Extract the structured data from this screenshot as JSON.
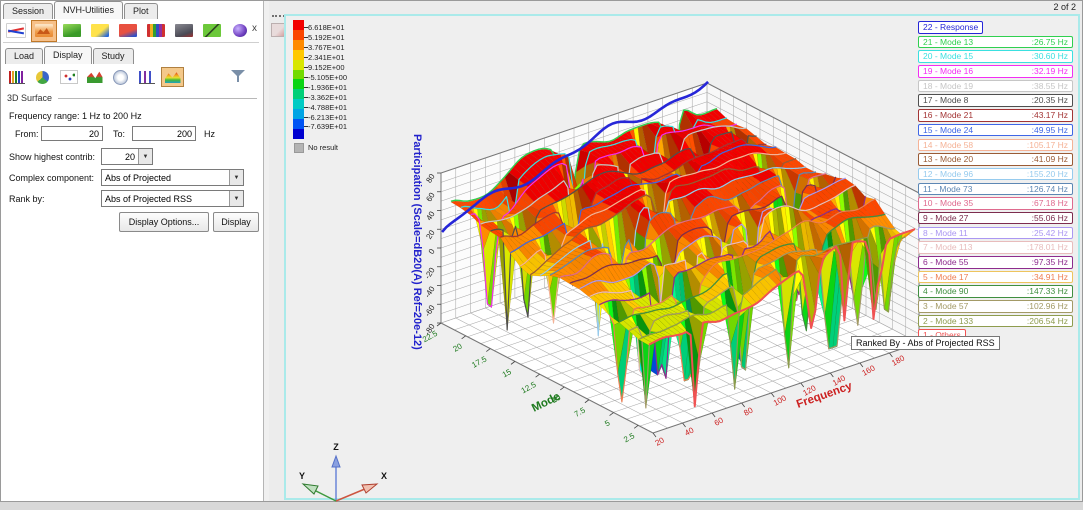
{
  "window": {
    "page_indicator": "2 of 2"
  },
  "left_panel": {
    "tabs": [
      {
        "label": "Session",
        "active": false
      },
      {
        "label": "NVH-Utilities",
        "active": true
      },
      {
        "label": "Plot",
        "active": false
      }
    ],
    "toolbar_icons": [
      "xy-plot-icon",
      "plot-display-icon",
      "vehicle-green-icon",
      "transfer-path-icon",
      "vehicle-red-icon",
      "dsa-barchart-icon",
      "vehicle-gray-icon",
      "matrix-green-icon",
      "sphere-icon"
    ],
    "toolbar_active_index": 1,
    "close_label": "x",
    "subtabs": [
      {
        "label": "Load",
        "active": false
      },
      {
        "label": "Display",
        "active": true
      },
      {
        "label": "Study",
        "active": false
      }
    ],
    "chart_icons": [
      "bar-chart-icon",
      "pie-chart-icon",
      "scatter-chart-icon",
      "area-chart-icon",
      "radar-db-icon",
      "stem-plot-icon",
      "surface-3d-icon"
    ],
    "chart_active_index": 6,
    "section_title": "3D Surface",
    "freq_range_label": "Frequency range: 1 Hz to 200 Hz",
    "from_label": "From:",
    "from_value": "20",
    "to_label": "To:",
    "to_value": "200",
    "hz_label": "Hz",
    "show_highest_label": "Show highest contrib:",
    "show_highest_value": "20",
    "complex_component_label": "Complex component:",
    "complex_component_value": "Abs of Projected",
    "rank_by_label": "Rank by:",
    "rank_by_value": "Abs of Projected RSS",
    "display_options_button": "Display Options...",
    "display_button": "Display"
  },
  "chart_data": {
    "type": "surface",
    "subtype": "3d-waterfall-modal-participation",
    "x_axis": {
      "label": "Frequency",
      "color": "#cc2020",
      "ticks": [
        "20",
        "40",
        "60",
        "80",
        "100",
        "120",
        "140",
        "160",
        "180"
      ],
      "range": [
        20,
        200
      ]
    },
    "y_axis": {
      "label": "Mode",
      "color": "#1e7a1e",
      "ticks": [
        "22.5",
        "20",
        "17.5",
        "15",
        "12.5",
        "10",
        "7.5",
        "5",
        "2.5"
      ],
      "range": [
        1,
        22.5
      ]
    },
    "z_axis": {
      "label": "Participation (Scale=dB20(A) Ref=20e-12)",
      "color": "#2222cc",
      "ticks": [
        "80",
        "60",
        "40",
        "20",
        "0",
        "-20",
        "-40",
        "-60",
        "-80"
      ],
      "range": [
        -80,
        80
      ]
    },
    "colorbar": {
      "labels": [
        "6.618E+01",
        "5.192E+01",
        "3.767E+01",
        "2.341E+01",
        "9.152E+00",
        "-5.105E+00",
        "-1.936E+01",
        "-3.362E+01",
        "-4.788E+01",
        "-6.213E+01",
        "-7.639E+01"
      ],
      "colors": [
        "#f20000",
        "#fb4600",
        "#ff8a00",
        "#ffc800",
        "#d8e600",
        "#72da00",
        "#0ad414",
        "#00cf78",
        "#00cbc4",
        "#00a4e4",
        "#0054f4",
        "#0000d0"
      ],
      "no_result": {
        "label": "No result",
        "color": "#b4b4b4"
      }
    },
    "series": [
      {
        "rank": "22",
        "name": "Response",
        "freq": "",
        "color": "#2626d8"
      },
      {
        "rank": "21",
        "name": "Mode 13",
        "freq": "26.75 Hz",
        "color": "#2fd04f"
      },
      {
        "rank": "20",
        "name": "Mode 15",
        "freq": "30.60 Hz",
        "color": "#3ae0e0"
      },
      {
        "rank": "19",
        "name": "Mode 16",
        "freq": "32.19 Hz",
        "color": "#f32ef3"
      },
      {
        "rank": "18",
        "name": "Mode 19",
        "freq": "38.55 Hz",
        "color": "#c6c6c6"
      },
      {
        "rank": "17",
        "name": "Mode 8",
        "freq": "20.35 Hz",
        "color": "#4f4f4f"
      },
      {
        "rank": "16",
        "name": "Mode 21",
        "freq": "43.17 Hz",
        "color": "#a33434"
      },
      {
        "rank": "15",
        "name": "Mode 24",
        "freq": "49.95 Hz",
        "color": "#3f66e6"
      },
      {
        "rank": "14",
        "name": "Mode 58",
        "freq": "105.17 Hz",
        "color": "#f5b296"
      },
      {
        "rank": "13",
        "name": "Mode 20",
        "freq": "41.09 Hz",
        "color": "#9a5b35"
      },
      {
        "rank": "12",
        "name": "Mode 96",
        "freq": "155.20 Hz",
        "color": "#96cbee"
      },
      {
        "rank": "11",
        "name": "Mode 73",
        "freq": "126.74 Hz",
        "color": "#5d87b4"
      },
      {
        "rank": "10",
        "name": "Mode 35",
        "freq": "67.18 Hz",
        "color": "#df6a8e"
      },
      {
        "rank": "9",
        "name": "Mode 27",
        "freq": "55.06 Hz",
        "color": "#7d2c4e"
      },
      {
        "rank": "8",
        "name": "Mode 11",
        "freq": "25.42 Hz",
        "color": "#ab97f2"
      },
      {
        "rank": "7",
        "name": "Mode 113",
        "freq": "178.01 Hz",
        "color": "#e8bcbc"
      },
      {
        "rank": "6",
        "name": "Mode 55",
        "freq": "97.35 Hz",
        "color": "#8d2b8d"
      },
      {
        "rank": "5",
        "name": "Mode 17",
        "freq": "34.91 Hz",
        "color": "#ee7e52",
        "border": "#eec45e"
      },
      {
        "rank": "4",
        "name": "Mode 90",
        "freq": "147.33 Hz",
        "color": "#3f8f3f"
      },
      {
        "rank": "3",
        "name": "Mode 57",
        "freq": "102.96 Hz",
        "color": "#a39a66"
      },
      {
        "rank": "2",
        "name": "Mode 133",
        "freq": "206.54 Hz",
        "color": "#8e9c4e"
      },
      {
        "rank": "1",
        "name": "Others",
        "freq": "",
        "color": "#f05252"
      }
    ],
    "ranked_by": "Ranked By - Abs of Projected RSS",
    "triad_labels": {
      "x": "X",
      "y": "Y",
      "z": "Z"
    }
  }
}
